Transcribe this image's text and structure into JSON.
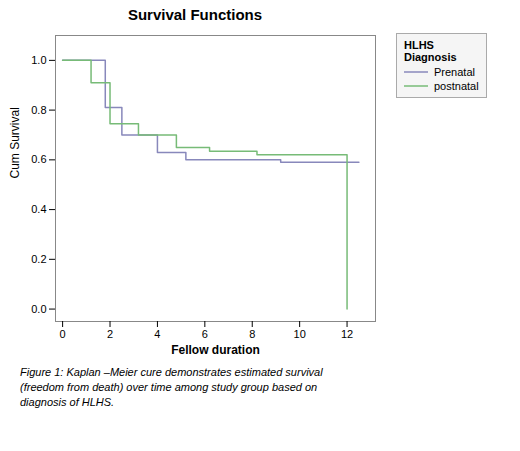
{
  "chart_data": {
    "type": "step",
    "title": "Survival Functions",
    "x_label": "Fellow duration",
    "y_label": "Cum Survival",
    "legend_title": "HLHS\nDiagnosis",
    "legend": "right",
    "grid": false,
    "xlim": [
      -0.3,
      13.2
    ],
    "ylim": [
      -0.05,
      1.1
    ],
    "xticks": [
      0,
      2,
      4,
      6,
      8,
      10,
      12
    ],
    "yticks": [
      {
        "value": 0,
        "label": "0.0"
      },
      0.2,
      0.4,
      0.6,
      0.8,
      {
        "value": 1,
        "label": "1.0"
      }
    ],
    "series": [
      {
        "name": "Prenatal",
        "color": "#8888bb",
        "x": [
          0,
          1.8,
          1.8,
          2.5,
          2.5,
          4.0,
          4.0,
          5.2,
          5.2,
          7.2,
          7.2,
          9.2,
          9.2,
          11.5,
          11.5,
          12.5
        ],
        "values": [
          1.0,
          1.0,
          0.81,
          0.81,
          0.7,
          0.7,
          0.63,
          0.63,
          0.6,
          0.6,
          0.6,
          0.6,
          0.59,
          0.59,
          0.59,
          0.59
        ]
      },
      {
        "name": "postnatal",
        "color": "#77bb77",
        "x": [
          0,
          1.2,
          1.2,
          2.0,
          2.0,
          3.2,
          3.2,
          4.8,
          4.8,
          6.2,
          6.2,
          8.2,
          8.2,
          9.5,
          9.5,
          11.8,
          11.8,
          12.0,
          12.0
        ],
        "values": [
          1.0,
          1.0,
          0.91,
          0.91,
          0.745,
          0.745,
          0.7,
          0.7,
          0.65,
          0.65,
          0.635,
          0.635,
          0.62,
          0.62,
          0.62,
          0.62,
          0.62,
          0.62,
          0.0
        ]
      }
    ],
    "caption": [
      "Figure 1: Kaplan –Meier cure demonstrates estimated survival",
      "(freedom from death) over time among study group based on",
      "diagnosis of HLHS."
    ]
  }
}
